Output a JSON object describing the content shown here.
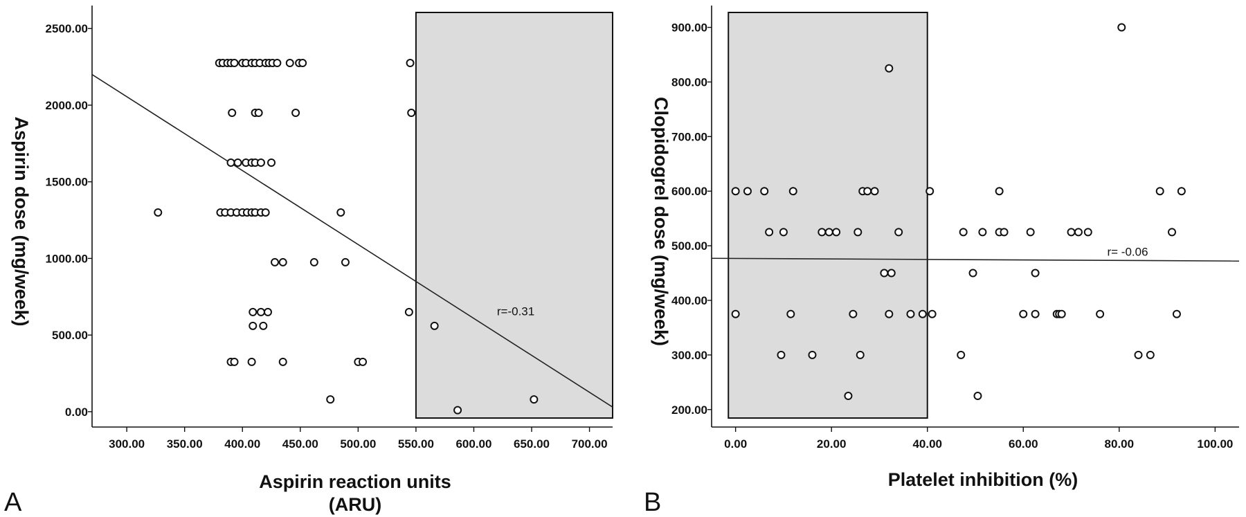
{
  "chart_data": [
    {
      "type": "scatter",
      "panel_label": "A",
      "xlabel_line1": "Aspirin reaction units",
      "xlabel_line2": "(ARU)",
      "ylabel": "Aspirin dose (mg/week)",
      "xlim": [
        270,
        720
      ],
      "ylim": [
        -100,
        2650
      ],
      "x_ticks": [
        300,
        350,
        400,
        450,
        500,
        550,
        600,
        650,
        700
      ],
      "x_tick_labels": [
        "300.00",
        "350.00",
        "400.00",
        "450.00",
        "500.00",
        "550.00",
        "600.00",
        "650.00",
        "700.00"
      ],
      "y_ticks": [
        0,
        500,
        1000,
        1500,
        2000,
        2500
      ],
      "y_tick_labels": [
        "0.00",
        "500.00",
        "1000.00",
        "1500.00",
        "2000.00",
        "2500.00"
      ],
      "shaded_region_x": [
        550,
        720
      ],
      "fit_line": {
        "x": [
          270,
          720
        ],
        "y": [
          2200,
          30
        ]
      },
      "annotation": "r=-0.31",
      "annotation_at": {
        "x": 620,
        "y": 630
      },
      "grid": false,
      "points": [
        {
          "x": 380,
          "y": 2275
        },
        {
          "x": 383,
          "y": 2275
        },
        {
          "x": 387,
          "y": 2275
        },
        {
          "x": 390,
          "y": 2275
        },
        {
          "x": 393,
          "y": 2275
        },
        {
          "x": 400,
          "y": 2275
        },
        {
          "x": 403,
          "y": 2275
        },
        {
          "x": 408,
          "y": 2275
        },
        {
          "x": 411,
          "y": 2275
        },
        {
          "x": 415,
          "y": 2275
        },
        {
          "x": 420,
          "y": 2275
        },
        {
          "x": 423,
          "y": 2275
        },
        {
          "x": 426,
          "y": 2275
        },
        {
          "x": 430,
          "y": 2275
        },
        {
          "x": 441,
          "y": 2275
        },
        {
          "x": 449,
          "y": 2275
        },
        {
          "x": 452,
          "y": 2275
        },
        {
          "x": 545,
          "y": 2275
        },
        {
          "x": 391,
          "y": 1950
        },
        {
          "x": 411,
          "y": 1950
        },
        {
          "x": 414,
          "y": 1950
        },
        {
          "x": 446,
          "y": 1950
        },
        {
          "x": 546,
          "y": 1950
        },
        {
          "x": 390,
          "y": 1625
        },
        {
          "x": 396,
          "y": 1625
        },
        {
          "x": 403,
          "y": 1625
        },
        {
          "x": 408,
          "y": 1625
        },
        {
          "x": 411,
          "y": 1625
        },
        {
          "x": 416,
          "y": 1625
        },
        {
          "x": 425,
          "y": 1625
        },
        {
          "x": 327,
          "y": 1300
        },
        {
          "x": 381,
          "y": 1300
        },
        {
          "x": 385,
          "y": 1300
        },
        {
          "x": 390,
          "y": 1300
        },
        {
          "x": 395,
          "y": 1300
        },
        {
          "x": 400,
          "y": 1300
        },
        {
          "x": 404,
          "y": 1300
        },
        {
          "x": 408,
          "y": 1300
        },
        {
          "x": 411,
          "y": 1300
        },
        {
          "x": 416,
          "y": 1300
        },
        {
          "x": 420,
          "y": 1300
        },
        {
          "x": 485,
          "y": 1300
        },
        {
          "x": 428,
          "y": 975
        },
        {
          "x": 435,
          "y": 975
        },
        {
          "x": 462,
          "y": 975
        },
        {
          "x": 489,
          "y": 975
        },
        {
          "x": 409,
          "y": 650
        },
        {
          "x": 416,
          "y": 650
        },
        {
          "x": 422,
          "y": 650
        },
        {
          "x": 544,
          "y": 650
        },
        {
          "x": 409,
          "y": 560
        },
        {
          "x": 418,
          "y": 560
        },
        {
          "x": 566,
          "y": 560
        },
        {
          "x": 390,
          "y": 325
        },
        {
          "x": 393,
          "y": 325
        },
        {
          "x": 408,
          "y": 325
        },
        {
          "x": 435,
          "y": 325
        },
        {
          "x": 500,
          "y": 325
        },
        {
          "x": 504,
          "y": 325
        },
        {
          "x": 476,
          "y": 80
        },
        {
          "x": 652,
          "y": 80
        },
        {
          "x": 586,
          "y": 10
        }
      ]
    },
    {
      "type": "scatter",
      "panel_label": "B",
      "xlabel": "Platelet inhibition (%)",
      "ylabel": "Clopidogrel dose (mg/week)",
      "xlim": [
        -5,
        105
      ],
      "ylim": [
        168,
        940
      ],
      "x_ticks": [
        0,
        20,
        40,
        60,
        80,
        100
      ],
      "x_tick_labels": [
        "0.00",
        "20.00",
        "40.00",
        "60.00",
        "80.00",
        "100.00"
      ],
      "y_ticks": [
        200,
        300,
        400,
        500,
        600,
        700,
        800,
        900
      ],
      "y_tick_labels": [
        "200.00",
        "300.00",
        "400.00",
        "500.00",
        "600.00",
        "700.00",
        "800.00",
        "900.00"
      ],
      "shaded_region_x": [
        -1.5,
        40
      ],
      "fit_line": {
        "x": [
          -5,
          105
        ],
        "y": [
          477,
          472
        ]
      },
      "annotation": "r= -0.06",
      "annotation_at": {
        "x": 77.5,
        "y": 482
      },
      "grid": false,
      "points": [
        {
          "x": 80.5,
          "y": 900
        },
        {
          "x": 32,
          "y": 825
        },
        {
          "x": 0,
          "y": 600
        },
        {
          "x": 2.5,
          "y": 600
        },
        {
          "x": 6,
          "y": 600
        },
        {
          "x": 12,
          "y": 600
        },
        {
          "x": 26.5,
          "y": 600
        },
        {
          "x": 27.5,
          "y": 600
        },
        {
          "x": 29,
          "y": 600
        },
        {
          "x": 40.5,
          "y": 600
        },
        {
          "x": 55,
          "y": 600
        },
        {
          "x": 88.5,
          "y": 600
        },
        {
          "x": 93,
          "y": 600
        },
        {
          "x": 7,
          "y": 525
        },
        {
          "x": 10,
          "y": 525
        },
        {
          "x": 18,
          "y": 525
        },
        {
          "x": 19.5,
          "y": 525
        },
        {
          "x": 21,
          "y": 525
        },
        {
          "x": 25.5,
          "y": 525
        },
        {
          "x": 34,
          "y": 525
        },
        {
          "x": 47.5,
          "y": 525
        },
        {
          "x": 51.5,
          "y": 525
        },
        {
          "x": 55,
          "y": 525
        },
        {
          "x": 56,
          "y": 525
        },
        {
          "x": 61.5,
          "y": 525
        },
        {
          "x": 70,
          "y": 525
        },
        {
          "x": 71.5,
          "y": 525
        },
        {
          "x": 73.5,
          "y": 525
        },
        {
          "x": 91,
          "y": 525
        },
        {
          "x": 31,
          "y": 450
        },
        {
          "x": 32.5,
          "y": 450
        },
        {
          "x": 49.5,
          "y": 450
        },
        {
          "x": 62.5,
          "y": 450
        },
        {
          "x": 0,
          "y": 375
        },
        {
          "x": 11.5,
          "y": 375
        },
        {
          "x": 24.5,
          "y": 375
        },
        {
          "x": 32,
          "y": 375
        },
        {
          "x": 36.5,
          "y": 375
        },
        {
          "x": 39,
          "y": 375
        },
        {
          "x": 41,
          "y": 375
        },
        {
          "x": 60,
          "y": 375
        },
        {
          "x": 62.5,
          "y": 375
        },
        {
          "x": 67,
          "y": 375
        },
        {
          "x": 67.5,
          "y": 375
        },
        {
          "x": 68,
          "y": 375
        },
        {
          "x": 76,
          "y": 375
        },
        {
          "x": 92,
          "y": 375
        },
        {
          "x": 9.5,
          "y": 300
        },
        {
          "x": 16,
          "y": 300
        },
        {
          "x": 26,
          "y": 300
        },
        {
          "x": 47,
          "y": 300
        },
        {
          "x": 84,
          "y": 300
        },
        {
          "x": 86.5,
          "y": 300
        },
        {
          "x": 23.5,
          "y": 225
        },
        {
          "x": 50.5,
          "y": 225
        }
      ]
    }
  ]
}
